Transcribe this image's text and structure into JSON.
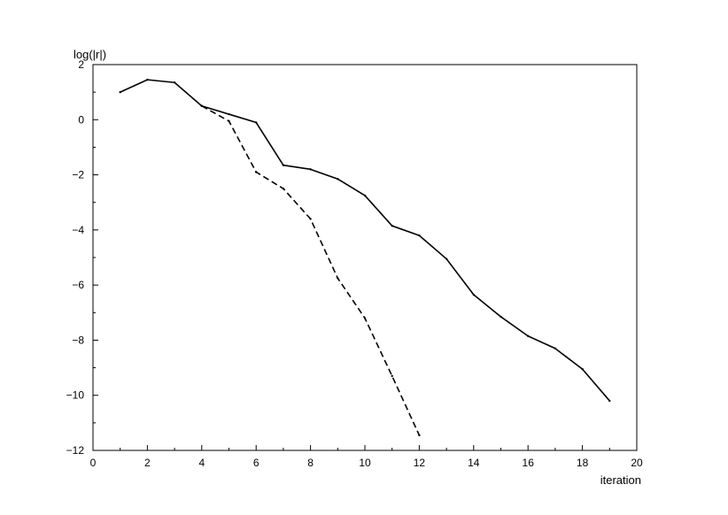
{
  "chart_data": {
    "type": "line",
    "title": "",
    "xlabel": "iteration",
    "ylabel": "log(|r|)",
    "xlim": [
      0,
      20
    ],
    "ylim": [
      -12,
      2
    ],
    "x_ticks": [
      0,
      2,
      4,
      6,
      8,
      10,
      12,
      14,
      16,
      18,
      20
    ],
    "y_ticks": [
      2,
      0,
      -2,
      -4,
      -6,
      -8,
      -10,
      -12
    ],
    "x_minor_step": 1,
    "y_minor_step": 1,
    "grid": false,
    "legend": "none",
    "series": [
      {
        "style": "solid",
        "color": "#000000",
        "x": [
          1,
          2,
          3,
          4,
          5,
          6,
          7,
          8,
          9,
          10,
          11,
          12,
          13,
          14,
          15,
          16,
          17,
          18,
          19
        ],
        "y": [
          1.0,
          1.45,
          1.35,
          0.5,
          0.2,
          -0.1,
          -1.65,
          -1.8,
          -2.15,
          -2.75,
          -3.85,
          -4.2,
          -5.05,
          -6.35,
          -7.15,
          -7.85,
          -8.3,
          -9.05,
          -10.2
        ]
      },
      {
        "style": "dashed",
        "color": "#000000",
        "x": [
          4,
          5,
          6,
          7,
          8,
          9,
          10,
          11,
          12
        ],
        "y": [
          0.5,
          -0.05,
          -1.9,
          -2.5,
          -3.6,
          -5.75,
          -7.2,
          -9.3,
          -11.45
        ]
      }
    ]
  }
}
